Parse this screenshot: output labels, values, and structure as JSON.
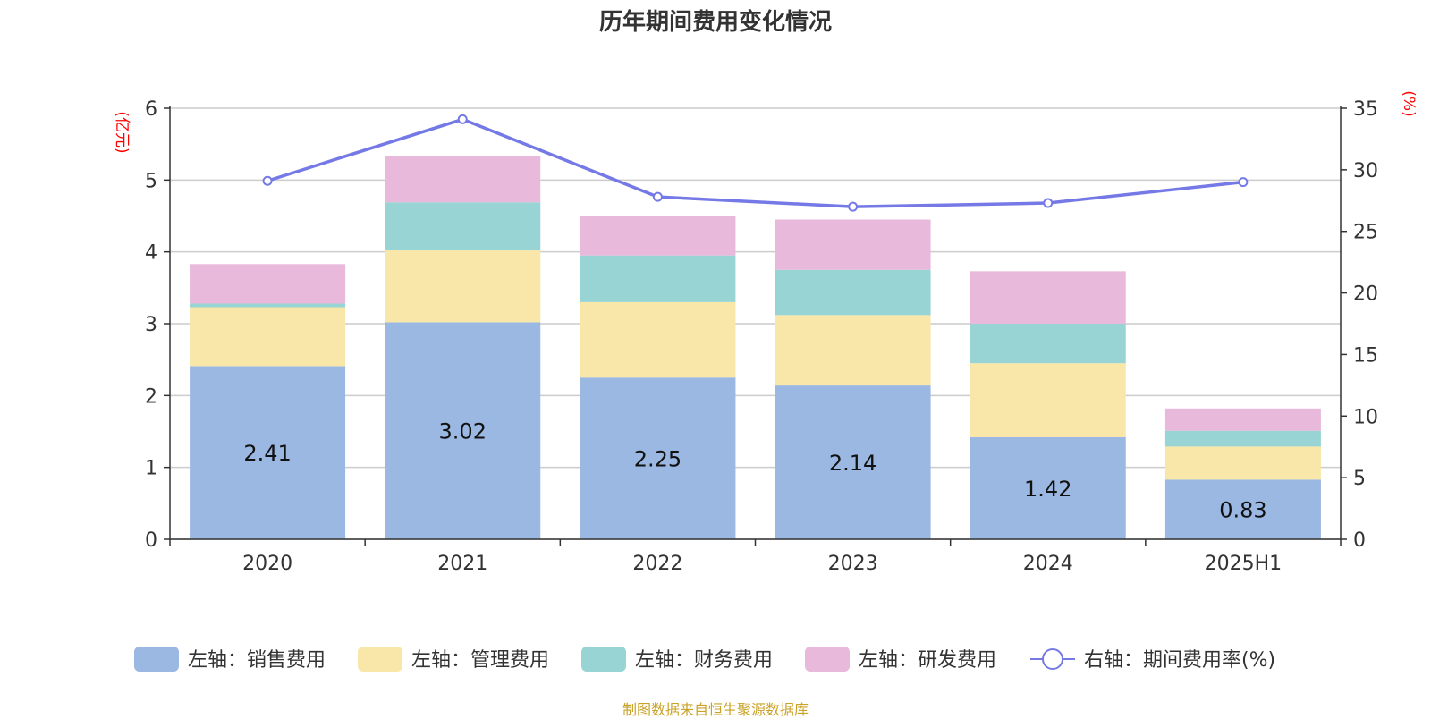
{
  "title": "历年期间费用变化情况",
  "footer": "制图数据来自恒生聚源数据库",
  "chart_data": {
    "type": "bar",
    "stacked": true,
    "title": "历年期间费用变化情况",
    "categories": [
      "2020",
      "2021",
      "2022",
      "2023",
      "2024",
      "2025H1"
    ],
    "left_axis": {
      "unit": "(亿元)",
      "ylim": [
        0,
        6
      ],
      "ticks": [
        0,
        1,
        2,
        3,
        4,
        5,
        6
      ]
    },
    "right_axis": {
      "unit": "(%)",
      "ylim": [
        0,
        35
      ],
      "ticks": [
        0,
        5,
        10,
        15,
        20,
        25,
        30,
        35
      ]
    },
    "series": [
      {
        "name": "左轴：销售费用",
        "type": "bar",
        "axis": "left",
        "color": "#9bb8e2",
        "values": [
          2.41,
          3.02,
          2.25,
          2.14,
          1.42,
          0.83
        ],
        "show_labels": true
      },
      {
        "name": "左轴：管理费用",
        "type": "bar",
        "axis": "left",
        "color": "#f8e7a8",
        "values": [
          0.82,
          1.0,
          1.05,
          0.98,
          1.03,
          0.46
        ]
      },
      {
        "name": "左轴：财务费用",
        "type": "bar",
        "axis": "left",
        "color": "#98d4d4",
        "values": [
          0.05,
          0.67,
          0.65,
          0.63,
          0.55,
          0.22
        ]
      },
      {
        "name": "左轴：研发费用",
        "type": "bar",
        "axis": "left",
        "color": "#e8b9da",
        "values": [
          0.55,
          0.65,
          0.55,
          0.7,
          0.73,
          0.31
        ]
      },
      {
        "name": "右轴：期间费用率(%)",
        "type": "line",
        "axis": "right",
        "color": "#7579e6",
        "values": [
          29.1,
          34.1,
          27.8,
          27.0,
          27.3,
          29.0
        ]
      }
    ],
    "grid": true,
    "legend": "bottom"
  }
}
